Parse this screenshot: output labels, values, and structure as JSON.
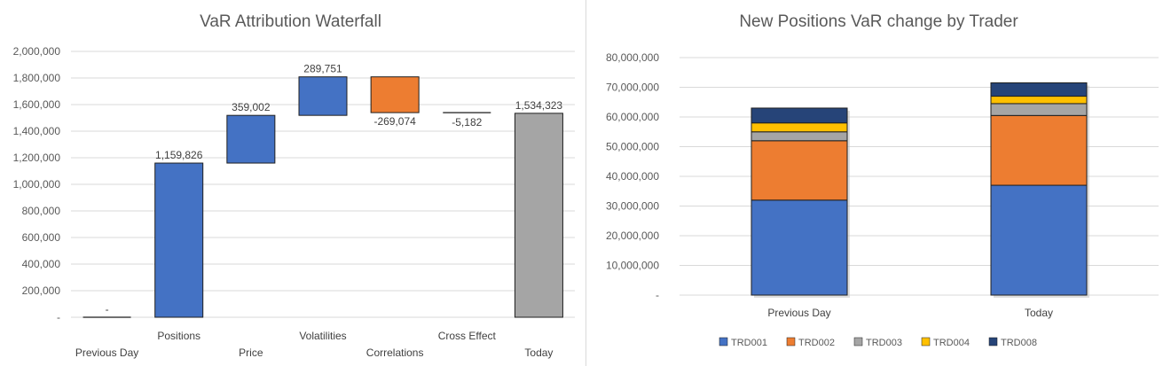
{
  "charts": {
    "waterfall": {
      "title": "VaR Attribution Waterfall",
      "colors": {
        "increase": "#4472c4",
        "decrease": "#ed7d31",
        "total": "#a5a5a5",
        "flat": "#404040"
      },
      "chart_data": {
        "type": "bar",
        "subtype": "waterfall",
        "title": "VaR Attribution Waterfall",
        "categories": [
          "Previous Day",
          "Positions",
          "Price",
          "Volatilities",
          "Correlations",
          "Cross Effect",
          "Today"
        ],
        "values": [
          0,
          1159826,
          359002,
          289751,
          -269074,
          -5182,
          1534323
        ],
        "data_labels": [
          "-",
          "1,159,826",
          "359,002",
          "289,751",
          "-269,074",
          "-5,182",
          "1,534,323"
        ],
        "kinds": [
          "total",
          "delta",
          "delta",
          "delta",
          "delta",
          "delta",
          "total"
        ],
        "ylim": [
          0,
          2000000
        ],
        "yticks": [
          "-",
          "200,000",
          "400,000",
          "600,000",
          "800,000",
          "1,000,000",
          "1,200,000",
          "1,400,000",
          "1,600,000",
          "1,800,000",
          "2,000,000"
        ],
        "grid": true,
        "xlabel": "",
        "ylabel": ""
      }
    },
    "stacked": {
      "title": "New Positions VaR change by Trader",
      "chart_data": {
        "type": "bar",
        "subtype": "stacked",
        "title": "New Positions VaR change by Trader",
        "categories": [
          "Previous Day",
          "Today"
        ],
        "series": [
          {
            "name": "TRD001",
            "color": "#4472c4",
            "values": [
              32000000,
              37000000
            ]
          },
          {
            "name": "TRD002",
            "color": "#ed7d31",
            "values": [
              20000000,
              23500000
            ]
          },
          {
            "name": "TRD003",
            "color": "#a5a5a5",
            "values": [
              3000000,
              4000000
            ]
          },
          {
            "name": "TRD004",
            "color": "#ffc000",
            "values": [
              3000000,
              2500000
            ]
          },
          {
            "name": "TRD008",
            "color": "#264478",
            "values": [
              5000000,
              4500000
            ]
          }
        ],
        "ylim": [
          0,
          80000000
        ],
        "yticks": [
          "-",
          "10,000,000",
          "20,000,000",
          "30,000,000",
          "40,000,000",
          "50,000,000",
          "60,000,000",
          "70,000,000",
          "80,000,000"
        ],
        "grid": true,
        "legend": "bottom",
        "xlabel": "",
        "ylabel": ""
      }
    }
  }
}
